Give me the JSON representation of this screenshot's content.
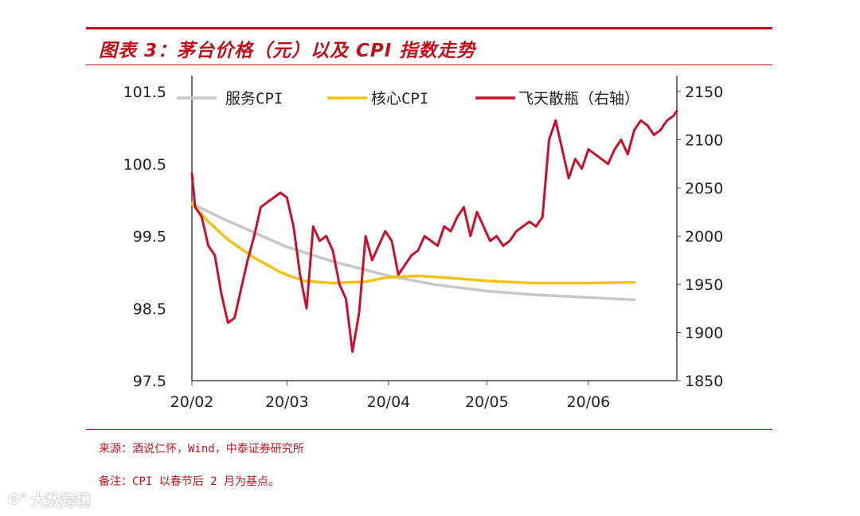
{
  "header": {
    "title": "图表 3：茅台价格（元）以及 CPI 指数走势"
  },
  "footer": {
    "source": "来源：酒说仁怀，Wind，中泰证券研究所",
    "remark": "备注：CPI 以春节后 2 月为基点。",
    "watermark": "大数跨境"
  },
  "colors": {
    "accent": "#c0101c",
    "service_cpi": "#c6c6c6",
    "core_cpi": "#f2c21a",
    "feitian": "#c8102e"
  },
  "chart_data": {
    "type": "line",
    "x_ticks": [
      "20/02",
      "20/03",
      "20/04",
      "20/05",
      "20/06"
    ],
    "x_range": [
      "2020-02-01",
      "2020-06-28"
    ],
    "y_left": {
      "ticks": [
        "101.5",
        "100.5",
        "99.5",
        "98.5",
        "97.5"
      ],
      "ylim": [
        97.5,
        101.5
      ]
    },
    "y_right": {
      "ticks": [
        "2150",
        "2100",
        "2050",
        "2000",
        "1950",
        "1900",
        "1850"
      ],
      "ylim": [
        1850,
        2150
      ]
    },
    "legend": [
      "服务CPI",
      "核心CPI",
      "飞天散瓶（右轴）"
    ],
    "legend_placement": "top",
    "series": [
      {
        "name": "服务CPI",
        "axis": "left",
        "color": "#c6c6c6",
        "x": [
          "2020-02-01",
          "2020-02-10",
          "2020-02-20",
          "2020-03-01",
          "2020-03-15",
          "2020-04-01",
          "2020-04-15",
          "2020-05-01",
          "2020-05-15",
          "2020-06-01",
          "2020-06-15"
        ],
        "y": [
          99.95,
          99.75,
          99.55,
          99.35,
          99.15,
          98.95,
          98.83,
          98.74,
          98.69,
          98.65,
          98.62
        ]
      },
      {
        "name": "核心CPI",
        "axis": "left",
        "color": "#f2c21a",
        "x": [
          "2020-02-01",
          "2020-02-06",
          "2020-02-12",
          "2020-02-20",
          "2020-02-28",
          "2020-03-06",
          "2020-03-15",
          "2020-03-25",
          "2020-04-01",
          "2020-04-10",
          "2020-04-20",
          "2020-05-01",
          "2020-05-15",
          "2020-06-01",
          "2020-06-15"
        ],
        "y": [
          99.95,
          99.7,
          99.45,
          99.2,
          99.0,
          98.88,
          98.85,
          98.87,
          98.93,
          98.95,
          98.92,
          98.88,
          98.85,
          98.85,
          98.86
        ]
      },
      {
        "name": "飞天散瓶（右轴）",
        "axis": "right",
        "color": "#c8102e",
        "x": [
          "2020-02-01",
          "2020-02-02",
          "2020-02-04",
          "2020-02-06",
          "2020-02-08",
          "2020-02-10",
          "2020-02-12",
          "2020-02-14",
          "2020-02-16",
          "2020-02-18",
          "2020-02-20",
          "2020-02-22",
          "2020-02-24",
          "2020-02-26",
          "2020-02-28",
          "2020-03-01",
          "2020-03-03",
          "2020-03-05",
          "2020-03-07",
          "2020-03-09",
          "2020-03-11",
          "2020-03-13",
          "2020-03-15",
          "2020-03-17",
          "2020-03-19",
          "2020-03-21",
          "2020-03-23",
          "2020-03-25",
          "2020-03-27",
          "2020-03-29",
          "2020-03-31",
          "2020-04-02",
          "2020-04-04",
          "2020-04-06",
          "2020-04-08",
          "2020-04-10",
          "2020-04-12",
          "2020-04-14",
          "2020-04-16",
          "2020-04-18",
          "2020-04-20",
          "2020-04-22",
          "2020-04-24",
          "2020-04-26",
          "2020-04-28",
          "2020-04-30",
          "2020-05-02",
          "2020-05-04",
          "2020-05-06",
          "2020-05-08",
          "2020-05-10",
          "2020-05-12",
          "2020-05-14",
          "2020-05-16",
          "2020-05-18",
          "2020-05-20",
          "2020-05-22",
          "2020-05-24",
          "2020-05-26",
          "2020-05-28",
          "2020-05-30",
          "2020-06-01",
          "2020-06-03",
          "2020-06-05",
          "2020-06-07",
          "2020-06-09",
          "2020-06-11",
          "2020-06-13",
          "2020-06-15",
          "2020-06-17",
          "2020-06-19",
          "2020-06-21",
          "2020-06-23",
          "2020-06-25",
          "2020-06-27",
          "2020-06-28"
        ],
        "y": [
          2065,
          2030,
          2020,
          1990,
          1980,
          1940,
          1910,
          1915,
          1945,
          1975,
          2000,
          2030,
          2035,
          2040,
          2045,
          2040,
          2010,
          1960,
          1925,
          2010,
          1995,
          2000,
          1985,
          1950,
          1935,
          1880,
          1920,
          2000,
          1975,
          1990,
          2005,
          1995,
          1960,
          1970,
          1980,
          1985,
          2000,
          1995,
          1990,
          2010,
          2005,
          2020,
          2030,
          2000,
          2025,
          2010,
          1995,
          2000,
          1990,
          1995,
          2005,
          2010,
          2015,
          2010,
          2020,
          2100,
          2120,
          2090,
          2060,
          2080,
          2070,
          2090,
          2085,
          2080,
          2075,
          2090,
          2100,
          2085,
          2110,
          2120,
          2115,
          2105,
          2110,
          2120,
          2125,
          2130
        ]
      }
    ]
  }
}
